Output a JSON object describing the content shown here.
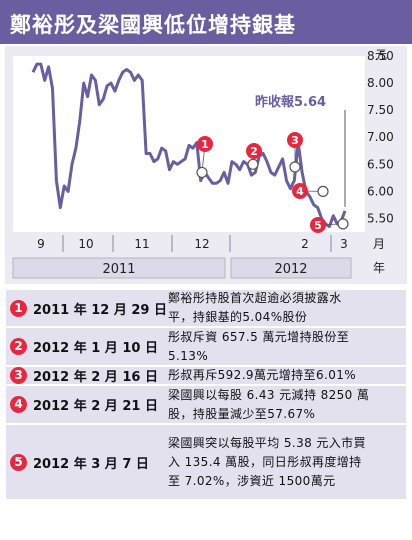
{
  "title": "鄭裕彤及梁國興低位增持銀基",
  "colors": {
    "header": "#6a5da0",
    "line": "#6a5da0",
    "marker": "#e8273f",
    "chart_bg": "#eceaf3",
    "row_bg": "#e4e1ef"
  },
  "chart_data": {
    "type": "line",
    "series": [
      {
        "values": [
          8.2,
          8.35,
          8.35,
          8.05,
          8.3,
          7.9,
          6.2,
          5.7,
          6.1,
          6.0,
          6.5,
          6.8,
          7.3,
          8.0,
          7.75,
          8.15,
          8.05,
          7.6,
          7.7,
          7.95,
          8.0,
          7.85,
          8.05,
          8.2,
          8.25,
          8.2,
          8.05,
          8.15,
          8.05,
          6.7,
          6.7,
          6.55,
          6.6,
          6.8,
          6.75,
          6.4,
          6.55,
          6.5,
          6.55,
          6.6,
          6.85,
          6.8,
          6.9,
          6.2,
          6.35,
          6.25,
          6.15,
          6.15,
          6.2,
          6.35,
          6.15,
          6.55,
          6.5,
          6.4,
          6.55,
          6.5,
          6.3,
          6.35,
          6.65,
          6.7,
          6.55,
          6.35,
          6.3,
          6.45,
          6.6,
          6.2,
          6.05,
          6.2,
          6.9,
          6.35,
          6.0,
          5.9,
          5.75,
          5.7,
          5.5,
          5.4,
          5.35,
          5.55,
          5.4,
          5.45,
          5.64
        ]
      }
    ],
    "ylim": [
      5.25,
      8.5
    ],
    "yticks": [
      "5.50",
      "6.00",
      "6.50",
      "7.00",
      "7.50",
      "8.00",
      "8.50"
    ],
    "yunit": "元",
    "months": [
      "9",
      "10",
      "11",
      "12",
      "2",
      "3"
    ],
    "month_unit": "月",
    "years": [
      "2011",
      "2012"
    ],
    "year_unit": "年",
    "close_label": "昨收報5.64",
    "markers": [
      {
        "num": "1",
        "value": 6.35
      },
      {
        "num": "2",
        "value": 6.5
      },
      {
        "num": "3",
        "value": 6.45
      },
      {
        "num": "4",
        "value": 6.0
      },
      {
        "num": "5",
        "value": 5.4
      }
    ]
  },
  "events": [
    {
      "num": "1",
      "date": "2011 年 12 月 29 日",
      "lines": [
        "鄭裕彤持股首次超逾必須披露水",
        "平，持銀基的5.04%股份"
      ]
    },
    {
      "num": "2",
      "date": "2012 年 1 月 10 日",
      "lines": [
        "彤叔斥資 657.5 萬元增持股份至",
        "5.13%"
      ]
    },
    {
      "num": "3",
      "date": "2012 年 2 月 16 日",
      "lines": [
        "彤叔再斥592.9萬元增持至6.01%"
      ]
    },
    {
      "num": "4",
      "date": "2012 年 2 月 21 日",
      "lines": [
        "梁國興以每股 6.43 元減持 8250 萬",
        "股，持股量減少至57.67%"
      ]
    },
    {
      "num": "5",
      "date": "2012 年 3 月 7 日",
      "lines": [
        "梁國興突以每股平均 5.38 元入市買",
        "入 135.4 萬股，同日彤叔再度增持",
        "至 7.02%，涉資近 1500萬元"
      ]
    }
  ]
}
